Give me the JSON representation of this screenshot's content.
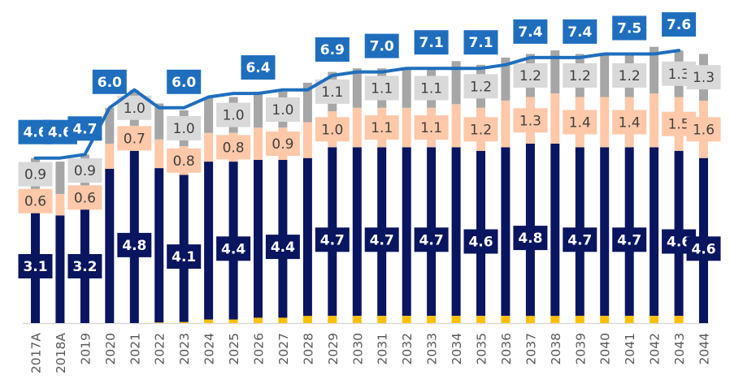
{
  "chart_data": {
    "type": "bar",
    "stacked": true,
    "title": "",
    "xlabel": "",
    "ylabel": "",
    "ylim": [
      0,
      8
    ],
    "grid": false,
    "legend": "none",
    "categories": [
      "2017A",
      "2018A",
      "2019",
      "2020",
      "2021",
      "2022",
      "2023",
      "2024",
      "2025",
      "2026",
      "2027",
      "2028",
      "2029",
      "2030",
      "2031",
      "2032",
      "2033",
      "2034",
      "2035",
      "2036",
      "2037",
      "2038",
      "2039",
      "2040",
      "2041",
      "2042",
      "2043",
      "2044"
    ],
    "series": [
      {
        "name": "Yellow segment",
        "color": "#FFC000",
        "values": [
          0,
          0,
          0,
          0,
          0,
          0.02,
          0.03,
          0.1,
          0.1,
          0.15,
          0.15,
          0.2,
          0.2,
          0.2,
          0.2,
          0.2,
          0.2,
          0.2,
          0.2,
          0.2,
          0.2,
          0.2,
          0.2,
          0.2,
          0.2,
          0.2,
          0.2,
          0
        ],
        "labels": [
          null,
          null,
          null,
          null,
          null,
          null,
          null,
          null,
          null,
          null,
          null,
          null,
          null,
          null,
          null,
          null,
          null,
          null,
          null,
          null,
          null,
          null,
          null,
          null,
          null,
          null,
          null,
          null
        ]
      },
      {
        "name": "Navy segment",
        "color": "#0A1560",
        "values": [
          3.1,
          3.0,
          3.2,
          4.3,
          4.8,
          4.3,
          4.1,
          4.4,
          4.4,
          4.4,
          4.4,
          4.4,
          4.7,
          4.7,
          4.7,
          4.7,
          4.7,
          4.7,
          4.6,
          4.7,
          4.8,
          4.8,
          4.7,
          4.7,
          4.7,
          4.7,
          4.6,
          4.6
        ],
        "labels": [
          "3.1",
          null,
          "3.2",
          null,
          "4.8",
          null,
          "4.1",
          null,
          "4.4",
          null,
          "4.4",
          null,
          "4.7",
          null,
          "4.7",
          null,
          "4.7",
          null,
          "4.6",
          null,
          "4.8",
          null,
          "4.7",
          null,
          "4.7",
          null,
          "4.6",
          "4.6"
        ]
      },
      {
        "name": "Peach segment",
        "color": "#FFC8A8",
        "values": [
          0.6,
          0.6,
          0.6,
          0.7,
          0.7,
          0.8,
          0.8,
          0.8,
          0.8,
          0.9,
          0.9,
          1.0,
          1.0,
          1.1,
          1.1,
          1.1,
          1.1,
          1.2,
          1.2,
          1.3,
          1.3,
          1.4,
          1.4,
          1.4,
          1.4,
          1.5,
          1.5,
          1.6
        ],
        "labels": [
          "0.6",
          null,
          "0.6",
          null,
          "0.7",
          null,
          "0.8",
          null,
          "0.8",
          null,
          "0.9",
          null,
          "1.0",
          null,
          "1.1",
          null,
          "1.1",
          null,
          "1.2",
          null,
          "1.3",
          null,
          "1.4",
          null,
          "1.4",
          null,
          "1.5",
          "1.6"
        ]
      },
      {
        "name": "Gray segment",
        "color": "#A6A6A6",
        "values": [
          0.9,
          0.9,
          0.9,
          1.0,
          1.0,
          1.0,
          1.0,
          1.0,
          1.0,
          1.0,
          1.0,
          1.1,
          1.1,
          1.1,
          1.1,
          1.1,
          1.1,
          1.2,
          1.2,
          1.2,
          1.2,
          1.2,
          1.2,
          1.2,
          1.2,
          1.3,
          1.3,
          1.3
        ],
        "labels": [
          "0.9",
          null,
          "0.9",
          null,
          "1.0",
          null,
          "1.0",
          null,
          "1.0",
          null,
          "1.0",
          null,
          "1.1",
          null,
          "1.1",
          null,
          "1.1",
          null,
          "1.2",
          null,
          "1.2",
          null,
          "1.2",
          null,
          "1.2",
          null,
          "1.3",
          "1.3"
        ]
      }
    ],
    "total_line": {
      "name": "Total",
      "color": "#1F6EBE",
      "values": [
        4.6,
        4.6,
        4.7,
        6.0,
        6.5,
        6.0,
        6.0,
        6.3,
        6.4,
        6.4,
        6.5,
        6.5,
        6.9,
        7.0,
        7.0,
        7.1,
        7.1,
        7.1,
        7.1,
        7.2,
        7.4,
        7.4,
        7.4,
        7.5,
        7.5,
        7.5,
        7.6,
        null
      ],
      "labels": [
        "4.6",
        "4.6",
        "4.7",
        "6.0",
        null,
        null,
        "6.0",
        null,
        null,
        "6.4",
        null,
        null,
        "6.9",
        null,
        "7.0",
        null,
        "7.1",
        null,
        "7.1",
        null,
        "7.4",
        null,
        "7.4",
        null,
        "7.5",
        null,
        "7.6",
        null
      ]
    }
  }
}
